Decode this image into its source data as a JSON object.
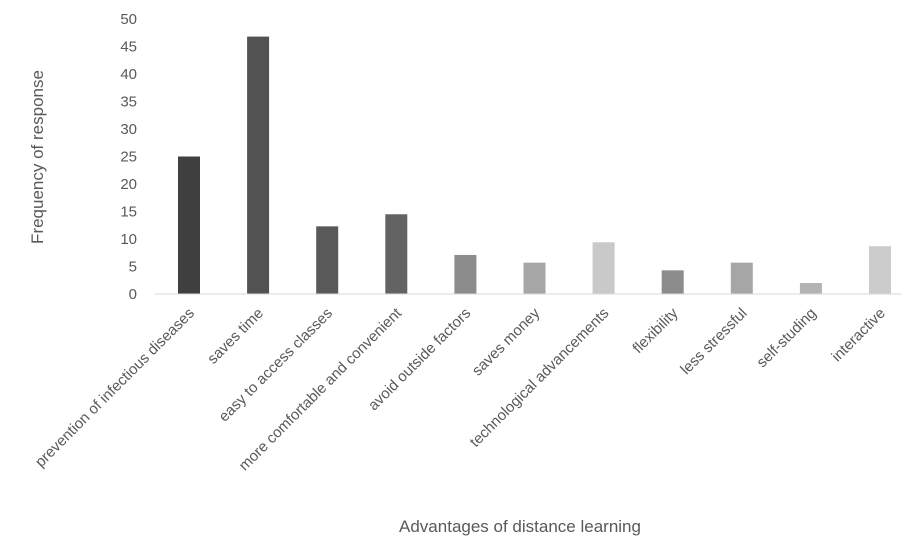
{
  "chart_data": {
    "type": "bar",
    "title": "",
    "xlabel": "Advantages of distance learning",
    "ylabel": "Frequency of response",
    "ylim": [
      0,
      50
    ],
    "yticks": [
      0,
      5,
      10,
      15,
      20,
      25,
      30,
      35,
      40,
      45,
      50
    ],
    "grid": false,
    "legend": "none",
    "categories": [
      "prevention of infectious diseases",
      "saves time",
      "easy to access classes",
      "more comfortable and convenient",
      "avoid outside factors",
      "saves money",
      "technological advancements",
      "flexibility",
      "less stressful",
      "self-studing",
      "interactive"
    ],
    "values": [
      25,
      46.8,
      12.3,
      14.5,
      7.1,
      5.7,
      9.4,
      4.3,
      5.7,
      2.0,
      8.7
    ],
    "colors": [
      "#404040",
      "#525252",
      "#595959",
      "#636363",
      "#8c8c8c",
      "#a6a6a6",
      "#c9c9c9",
      "#8c8c8c",
      "#a6a6a6",
      "#b3b3b3",
      "#cccccc"
    ]
  }
}
